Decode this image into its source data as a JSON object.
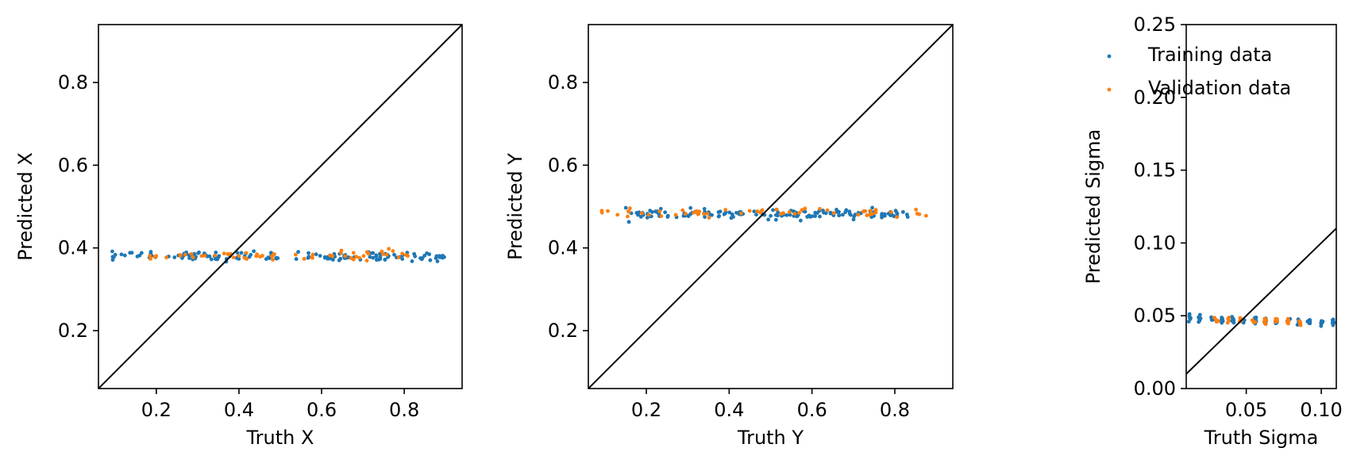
{
  "colors": {
    "training": "#1f77b4",
    "validation": "#ff7f0e",
    "identity_line": "#000000",
    "frame": "#000000"
  },
  "legend": {
    "placement": "upper-left of third panel",
    "entries": [
      "Training data",
      "Validation data"
    ]
  },
  "chart_data": [
    {
      "type": "scatter",
      "xlabel": "Truth X",
      "ylabel": "Predicted X",
      "xlim": [
        0.06,
        0.94
      ],
      "ylim": [
        0.06,
        0.94
      ],
      "xticks": [
        "0.2",
        "0.4",
        "0.6",
        "0.8"
      ],
      "yticks": [
        "0.2",
        "0.4",
        "0.6",
        "0.8"
      ],
      "xtick_values": [
        0.2,
        0.4,
        0.6,
        0.8
      ],
      "ytick_values": [
        0.2,
        0.4,
        0.6,
        0.8
      ],
      "grid": false,
      "identity_line": true,
      "series": [
        {
          "name": "Training data",
          "color": "#1f77b4",
          "x_range": [
            0.09,
            0.9
          ],
          "y_center": 0.38,
          "y_spread": 0.01,
          "count": 140
        },
        {
          "name": "Validation data",
          "color": "#ff7f0e",
          "x_range": [
            0.18,
            0.81
          ],
          "y_center": 0.382,
          "y_spread": 0.01,
          "count": 60
        }
      ]
    },
    {
      "type": "scatter",
      "xlabel": "Truth Y",
      "ylabel": "Predicted Y",
      "xlim": [
        0.06,
        0.94
      ],
      "ylim": [
        0.06,
        0.94
      ],
      "xticks": [
        "0.2",
        "0.4",
        "0.6",
        "0.8"
      ],
      "yticks": [
        "0.2",
        "0.4",
        "0.6",
        "0.8"
      ],
      "xtick_values": [
        0.2,
        0.4,
        0.6,
        0.8
      ],
      "ytick_values": [
        0.2,
        0.4,
        0.6,
        0.8
      ],
      "grid": false,
      "identity_line": true,
      "series": [
        {
          "name": "Training data",
          "color": "#1f77b4",
          "x_range": [
            0.15,
            0.85
          ],
          "y_center": 0.482,
          "y_spread": 0.01,
          "count": 150
        },
        {
          "name": "Validation data",
          "color": "#ff7f0e",
          "x_range": [
            0.09,
            0.9
          ],
          "y_center": 0.485,
          "y_spread": 0.009,
          "count": 55
        }
      ]
    },
    {
      "type": "scatter",
      "xlabel": "Truth Sigma",
      "ylabel": "Predicted Sigma",
      "xlim": [
        0.01,
        0.11
      ],
      "ylim": [
        0.0,
        0.25
      ],
      "xticks": [
        "0.05",
        "0.10"
      ],
      "yticks": [
        "0.00",
        "0.05",
        "0.10",
        "0.15",
        "0.20",
        "0.25"
      ],
      "xtick_values": [
        0.05,
        0.1
      ],
      "ytick_values": [
        0.0,
        0.05,
        0.1,
        0.15,
        0.2,
        0.25
      ],
      "grid": false,
      "identity_line": true,
      "series": [
        {
          "name": "Training data",
          "color": "#1f77b4",
          "x_levels": [
            0.012,
            0.019,
            0.027,
            0.034,
            0.041,
            0.048,
            0.056,
            0.063,
            0.07,
            0.078,
            0.085,
            0.092,
            0.1,
            0.108
          ],
          "y_start": 0.048,
          "y_end": 0.045,
          "count_per_level": 8
        },
        {
          "name": "Validation data",
          "color": "#ff7f0e",
          "x_levels": [
            0.03,
            0.038,
            0.046,
            0.055,
            0.063,
            0.07,
            0.078,
            0.086
          ],
          "y_start": 0.047,
          "y_end": 0.046,
          "count_per_level": 5
        }
      ]
    }
  ]
}
